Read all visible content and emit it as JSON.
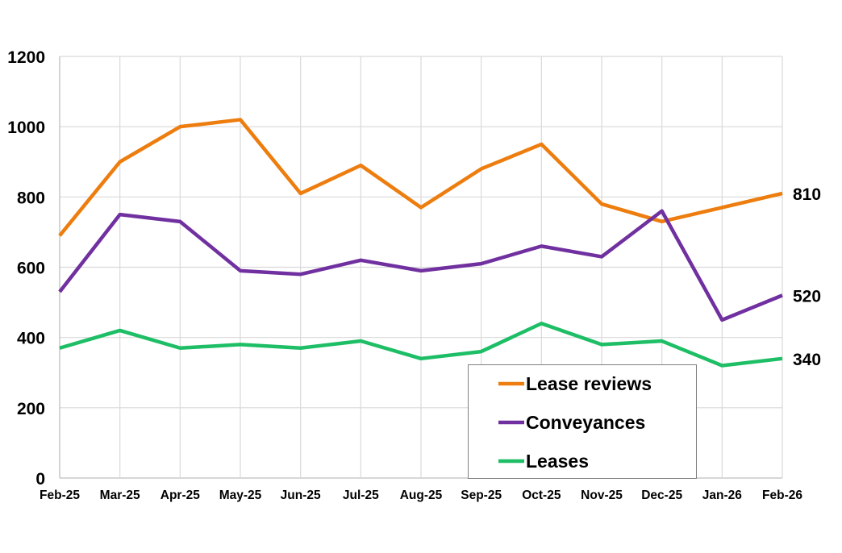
{
  "chart_data": {
    "type": "line",
    "categories": [
      "Feb-25",
      "Mar-25",
      "Apr-25",
      "May-25",
      "Jun-25",
      "Jul-25",
      "Aug-25",
      "Sep-25",
      "Oct-25",
      "Nov-25",
      "Dec-25",
      "Jan-26",
      "Feb-26"
    ],
    "ylim": [
      0,
      1200
    ],
    "yticks": [
      "0",
      "200",
      "400",
      "600",
      "800",
      "1000",
      "1200"
    ],
    "grid": true,
    "legend_position": "bottom-right",
    "series": [
      {
        "name": "Lease reviews",
        "color": "#ED7D0E",
        "values": [
          690,
          900,
          1000,
          1020,
          810,
          890,
          770,
          880,
          950,
          780,
          730,
          770,
          810
        ],
        "end_label": "810"
      },
      {
        "name": "Conveyances",
        "color": "#7030A0",
        "values": [
          530,
          750,
          730,
          590,
          580,
          620,
          590,
          610,
          660,
          630,
          760,
          450,
          520
        ],
        "end_label": "520"
      },
      {
        "name": "Leases",
        "color": "#1DBE65",
        "values": [
          370,
          420,
          370,
          380,
          370,
          390,
          340,
          360,
          440,
          380,
          390,
          320,
          340
        ],
        "end_label": "340"
      }
    ]
  }
}
